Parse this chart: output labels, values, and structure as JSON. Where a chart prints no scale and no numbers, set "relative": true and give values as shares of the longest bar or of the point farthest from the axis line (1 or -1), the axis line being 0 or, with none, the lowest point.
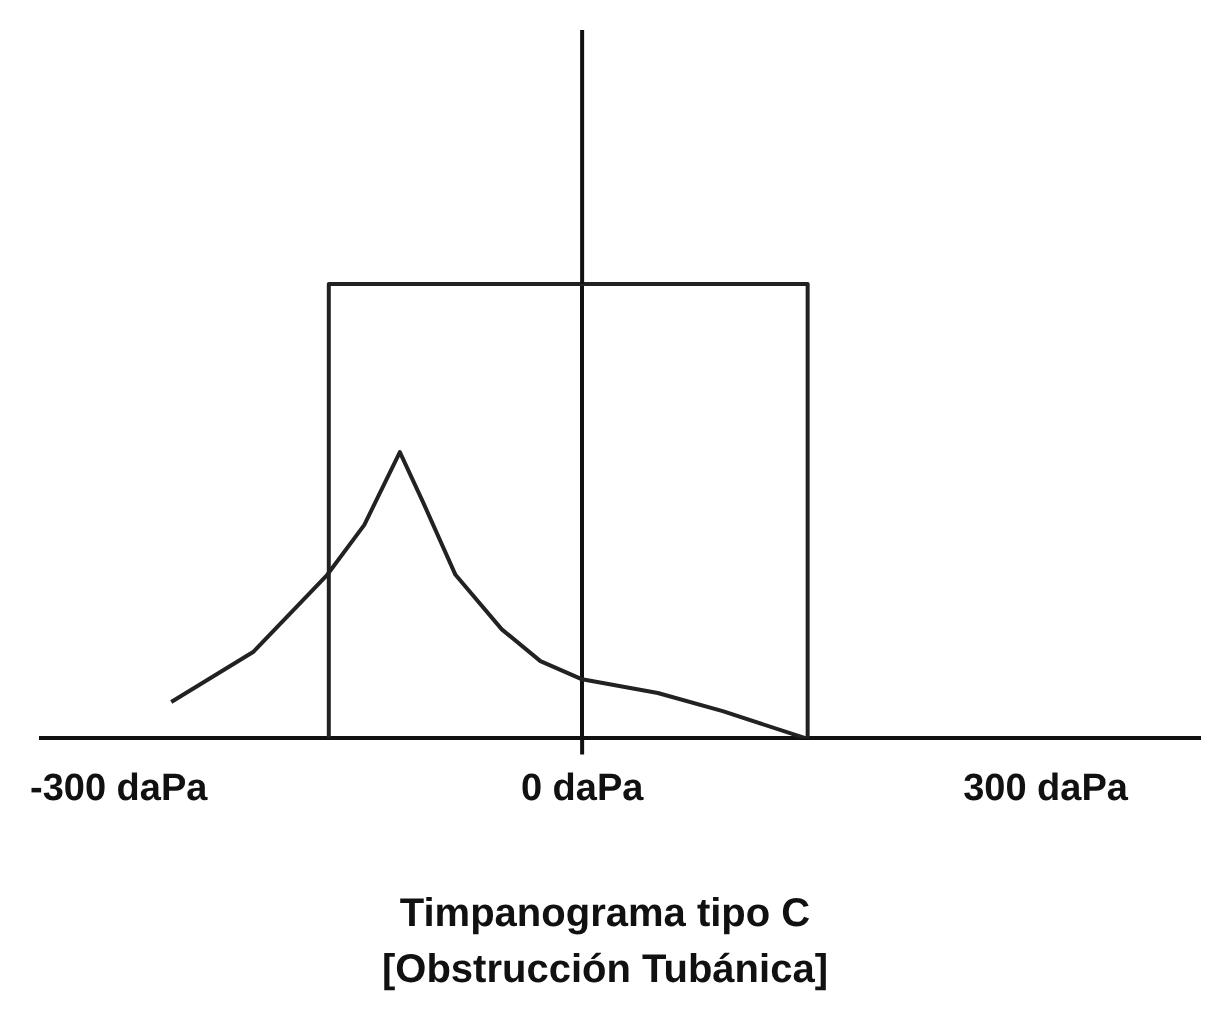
{
  "chart_data": {
    "type": "line",
    "title": "Timpanograma tipo C",
    "subtitle": "[Obstrucción Tubánica]",
    "relative": true,
    "series": [
      {
        "color": "#222222",
        "x": [
          -266,
          -213,
          -165,
          -141,
          -118,
          -103,
          -82,
          -52,
          -27,
          0,
          49,
          91,
          145
        ],
        "values": [
          0.08,
          0.19,
          0.36,
          0.47,
          0.63,
          0.52,
          0.36,
          0.24,
          0.17,
          0.13,
          0.1,
          0.06,
          0
        ]
      },
      {
        "color": "#222222",
        "x": [
          -164,
          -164,
          146,
          146
        ],
        "values": [
          0,
          1,
          1,
          0
        ]
      }
    ],
    "xlim": [
      -350,
      400
    ],
    "xticks": [
      {
        "value": -300,
        "label": "-300 daPa"
      },
      {
        "value": 0,
        "label": "0 daPa"
      },
      {
        "value": 300,
        "label": "300 daPa"
      }
    ],
    "marker": "none",
    "line_style": "solid",
    "legend": false
  }
}
